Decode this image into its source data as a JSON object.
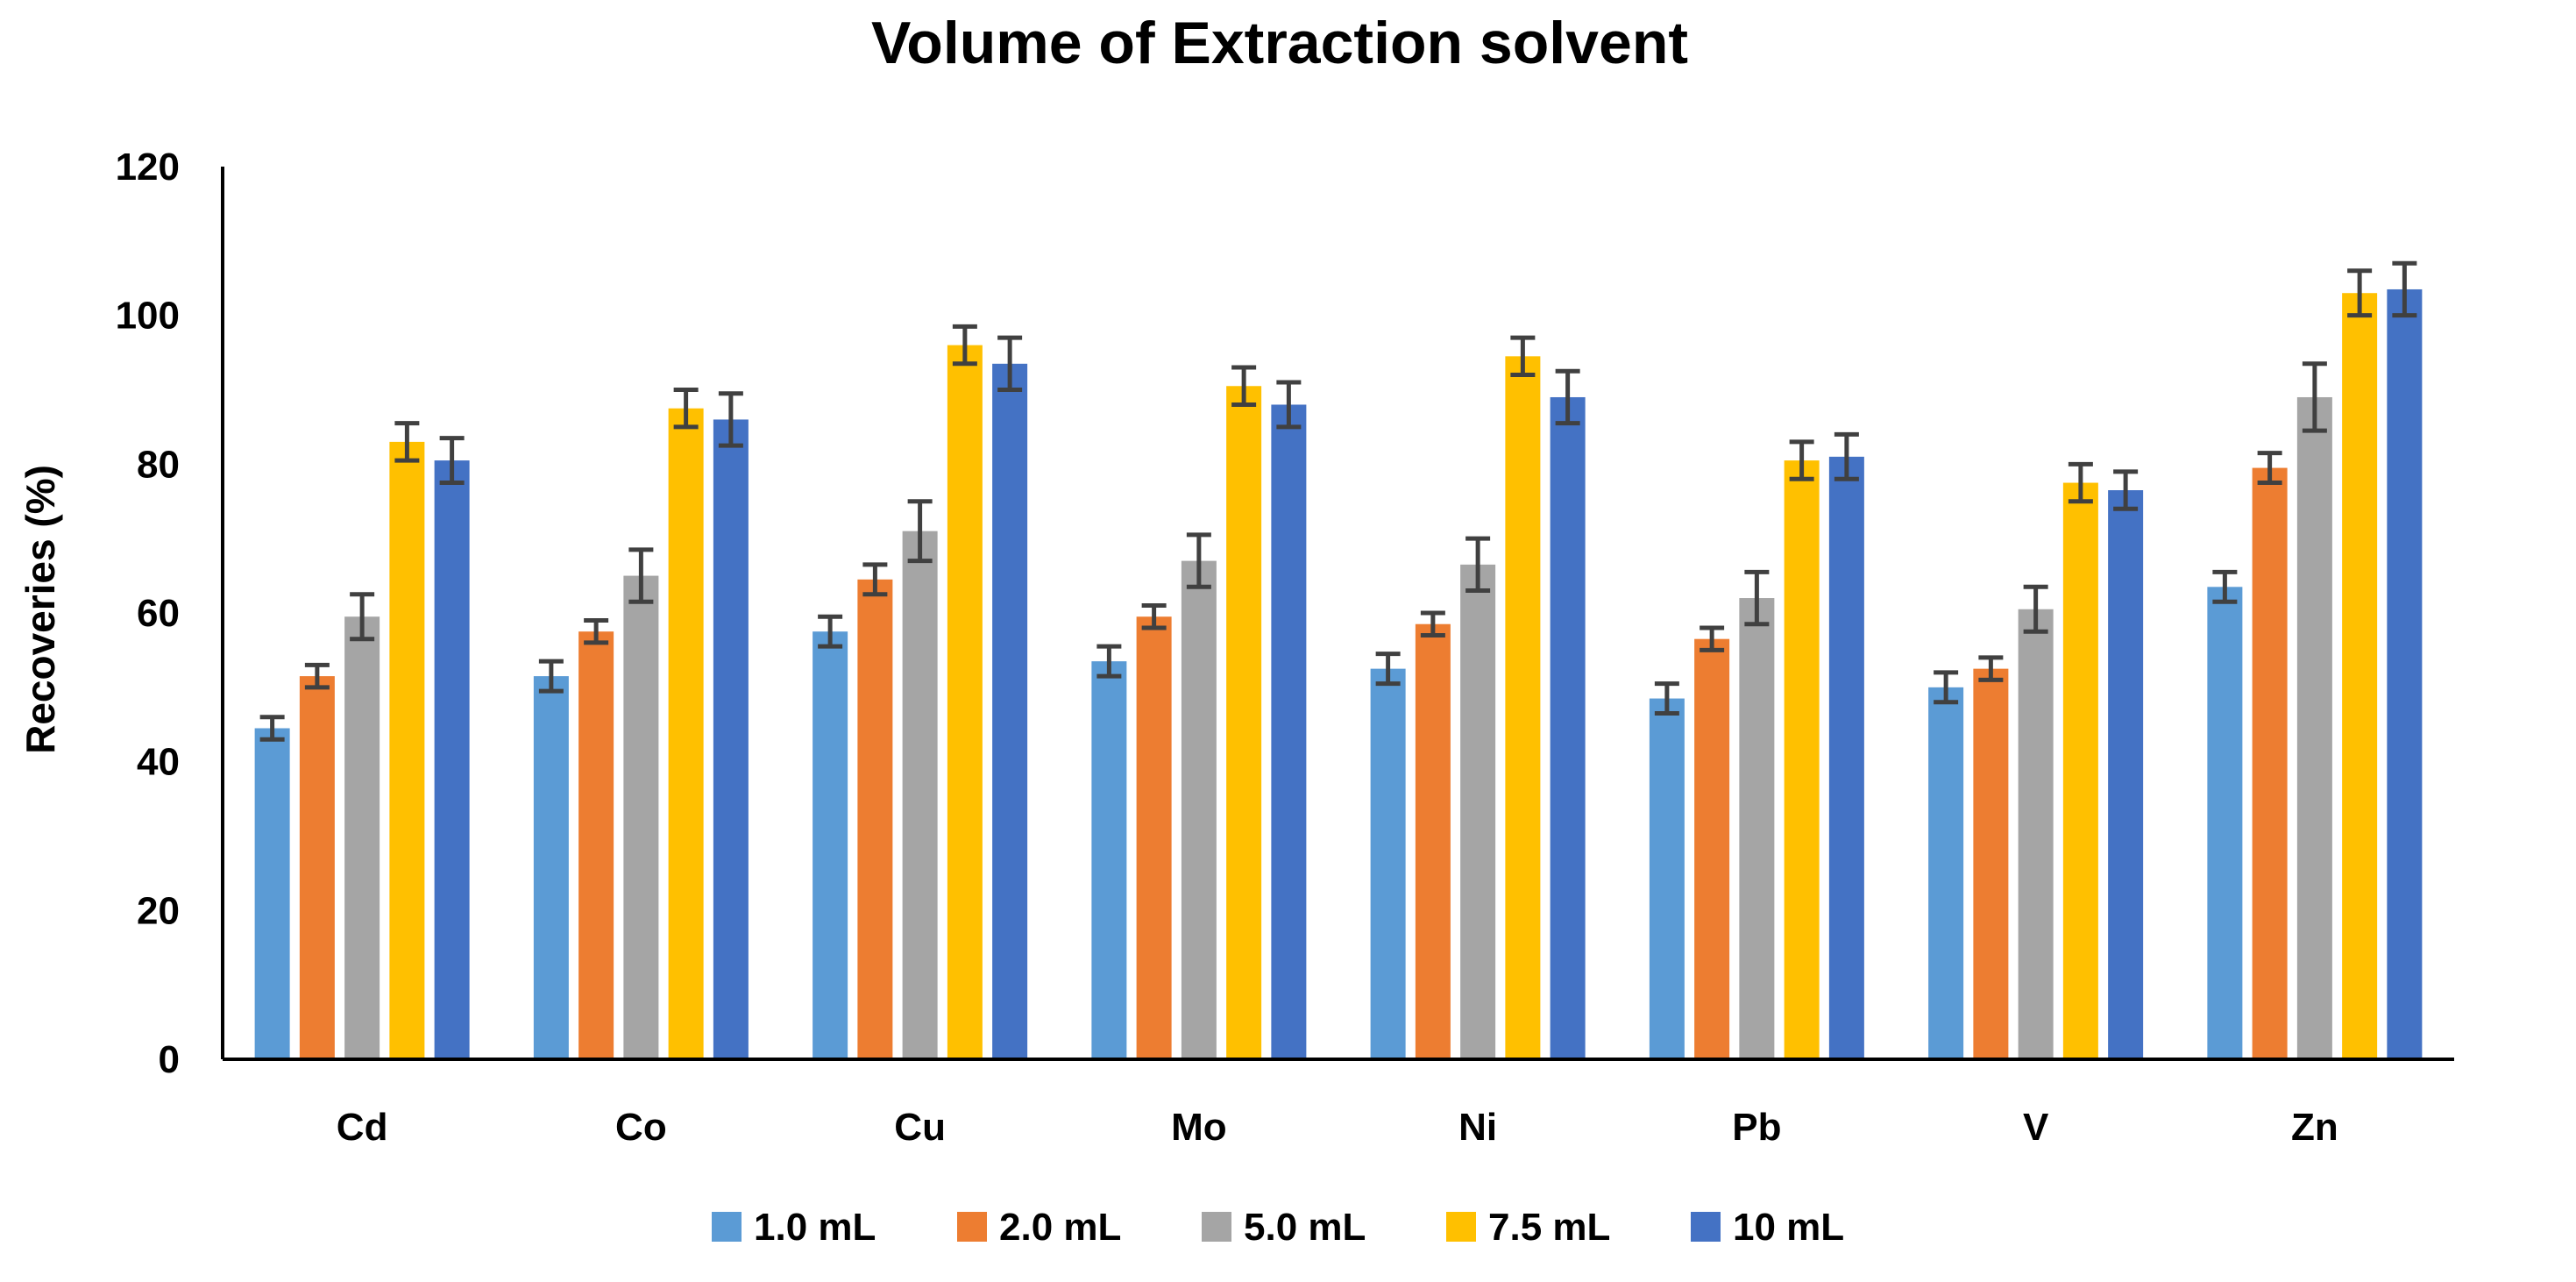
{
  "chart_data": {
    "type": "bar",
    "title": "Volume of Extraction solvent",
    "xlabel": "",
    "ylabel": "Recoveries (%)",
    "ylim": [
      0,
      120
    ],
    "yticks": [
      0,
      20,
      40,
      60,
      80,
      100,
      120
    ],
    "grid": false,
    "legend_position": "bottom",
    "error_bars": true,
    "categories": [
      "Cd",
      "Co",
      "Cu",
      "Mo",
      "Ni",
      "Pb",
      "V",
      "Zn"
    ],
    "series": [
      {
        "name": "1.0 mL",
        "color": "#5B9BD5",
        "values": [
          44.5,
          51.5,
          57.5,
          53.5,
          52.5,
          48.5,
          50,
          63.5
        ],
        "errors": [
          1.5,
          2,
          2,
          2,
          2,
          2,
          2,
          2
        ]
      },
      {
        "name": "2.0 mL",
        "color": "#ED7D31",
        "values": [
          51.5,
          57.5,
          64.5,
          59.5,
          58.5,
          56.5,
          52.5,
          79.5
        ],
        "errors": [
          1.5,
          1.5,
          2,
          1.5,
          1.5,
          1.5,
          1.5,
          2
        ]
      },
      {
        "name": "5.0 mL",
        "color": "#A5A5A5",
        "values": [
          59.5,
          65,
          71,
          67,
          66.5,
          62,
          60.5,
          89
        ],
        "errors": [
          3,
          3.5,
          4,
          3.5,
          3.5,
          3.5,
          3,
          4.5
        ]
      },
      {
        "name": "7.5 mL",
        "color": "#FFC000",
        "values": [
          83,
          87.5,
          96,
          90.5,
          94.5,
          80.5,
          77.5,
          103
        ],
        "errors": [
          2.5,
          2.5,
          2.5,
          2.5,
          2.5,
          2.5,
          2.5,
          3
        ]
      },
      {
        "name": "10 mL",
        "color": "#4472C4",
        "values": [
          80.5,
          86,
          93.5,
          88,
          89,
          81,
          76.5,
          103.5
        ],
        "errors": [
          3,
          3.5,
          3.5,
          3,
          3.5,
          3,
          2.5,
          3.5
        ]
      }
    ]
  }
}
